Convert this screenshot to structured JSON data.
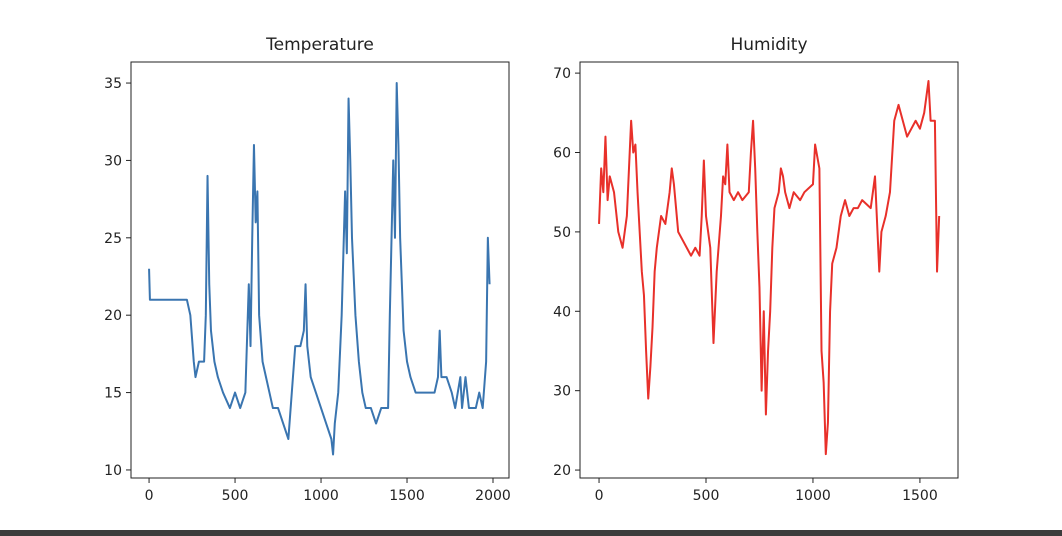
{
  "chart_data": [
    {
      "type": "line",
      "title": "Temperature",
      "xlim": [
        -105,
        2093
      ],
      "ylim": [
        9.48,
        36.36
      ],
      "xticks": [
        0,
        500,
        1000,
        1500,
        2000
      ],
      "yticks": [
        10,
        15,
        20,
        25,
        30,
        35
      ],
      "series": [
        {
          "color": "#3a75b0",
          "x": [
            0,
            5,
            220,
            240,
            260,
            270,
            290,
            320,
            330,
            340,
            350,
            360,
            380,
            400,
            430,
            470,
            500,
            530,
            560,
            580,
            590,
            600,
            610,
            620,
            630,
            640,
            660,
            680,
            700,
            720,
            750,
            780,
            810,
            830,
            850,
            880,
            900,
            910,
            920,
            940,
            970,
            1000,
            1030,
            1060,
            1070,
            1080,
            1100,
            1120,
            1140,
            1150,
            1160,
            1170,
            1180,
            1200,
            1220,
            1240,
            1260,
            1290,
            1320,
            1350,
            1390,
            1400,
            1420,
            1430,
            1440,
            1450,
            1460,
            1480,
            1500,
            1520,
            1550,
            1600,
            1660,
            1680,
            1690,
            1700,
            1730,
            1760,
            1780,
            1810,
            1820,
            1840,
            1860,
            1900,
            1920,
            1940,
            1960,
            1970,
            1980
          ],
          "values": [
            23,
            21,
            21,
            20,
            17,
            16,
            17,
            17,
            20,
            29,
            22,
            19,
            17,
            16,
            15,
            14,
            15,
            14,
            15,
            22,
            18,
            25,
            31,
            26,
            28,
            20,
            17,
            16,
            15,
            14,
            14,
            13,
            12,
            15,
            18,
            18,
            19,
            22,
            18,
            16,
            15,
            14,
            13,
            12,
            11,
            13,
            15,
            20,
            28,
            24,
            34,
            30,
            25,
            20,
            17,
            15,
            14,
            14,
            13,
            14,
            14,
            20,
            30,
            25,
            35,
            31,
            25,
            19,
            17,
            16,
            15,
            15,
            15,
            16,
            19,
            16,
            16,
            15,
            14,
            16,
            14,
            16,
            14,
            14,
            15,
            14,
            17,
            25,
            22
          ]
        }
      ]
    },
    {
      "type": "line",
      "title": "Humidity",
      "xlim": [
        -89,
        1678
      ],
      "ylim": [
        19.0,
        71.4
      ],
      "xticks": [
        0,
        500,
        1000,
        1500
      ],
      "yticks": [
        20,
        30,
        40,
        50,
        60,
        70
      ],
      "series": [
        {
          "color": "#e8302a",
          "x": [
            0,
            10,
            20,
            30,
            40,
            50,
            70,
            90,
            110,
            130,
            150,
            160,
            170,
            180,
            200,
            210,
            220,
            230,
            240,
            250,
            260,
            270,
            290,
            310,
            330,
            340,
            350,
            370,
            390,
            410,
            430,
            450,
            470,
            480,
            490,
            500,
            510,
            520,
            530,
            535,
            550,
            570,
            580,
            590,
            600,
            610,
            630,
            650,
            670,
            700,
            710,
            720,
            730,
            740,
            750,
            760,
            770,
            780,
            790,
            800,
            810,
            820,
            840,
            850,
            860,
            870,
            890,
            910,
            940,
            960,
            1000,
            1010,
            1030,
            1040,
            1050,
            1060,
            1070,
            1080,
            1090,
            1110,
            1130,
            1150,
            1170,
            1190,
            1210,
            1230,
            1270,
            1290,
            1310,
            1320,
            1340,
            1360,
            1380,
            1400,
            1420,
            1440,
            1460,
            1480,
            1500,
            1520,
            1540,
            1550,
            1570,
            1580,
            1590
          ],
          "values": [
            51,
            58,
            55,
            62,
            54,
            57,
            55,
            50,
            48,
            52,
            64,
            60,
            61,
            55,
            45,
            42,
            35,
            29,
            33,
            38,
            45,
            48,
            52,
            51,
            55,
            58,
            56,
            50,
            49,
            48,
            47,
            48,
            47,
            52,
            59,
            52,
            50,
            48,
            40,
            36,
            45,
            52,
            57,
            56,
            61,
            55,
            54,
            55,
            54,
            55,
            60,
            64,
            58,
            50,
            43,
            30,
            40,
            27,
            35,
            40,
            48,
            53,
            55,
            58,
            57,
            55,
            53,
            55,
            54,
            55,
            56,
            61,
            58,
            35,
            31,
            22,
            26,
            40,
            46,
            48,
            52,
            54,
            52,
            53,
            53,
            54,
            53,
            57,
            45,
            50,
            52,
            55,
            64,
            66,
            64,
            62,
            63,
            64,
            63,
            65,
            69,
            64,
            64,
            45,
            52
          ]
        }
      ]
    }
  ]
}
